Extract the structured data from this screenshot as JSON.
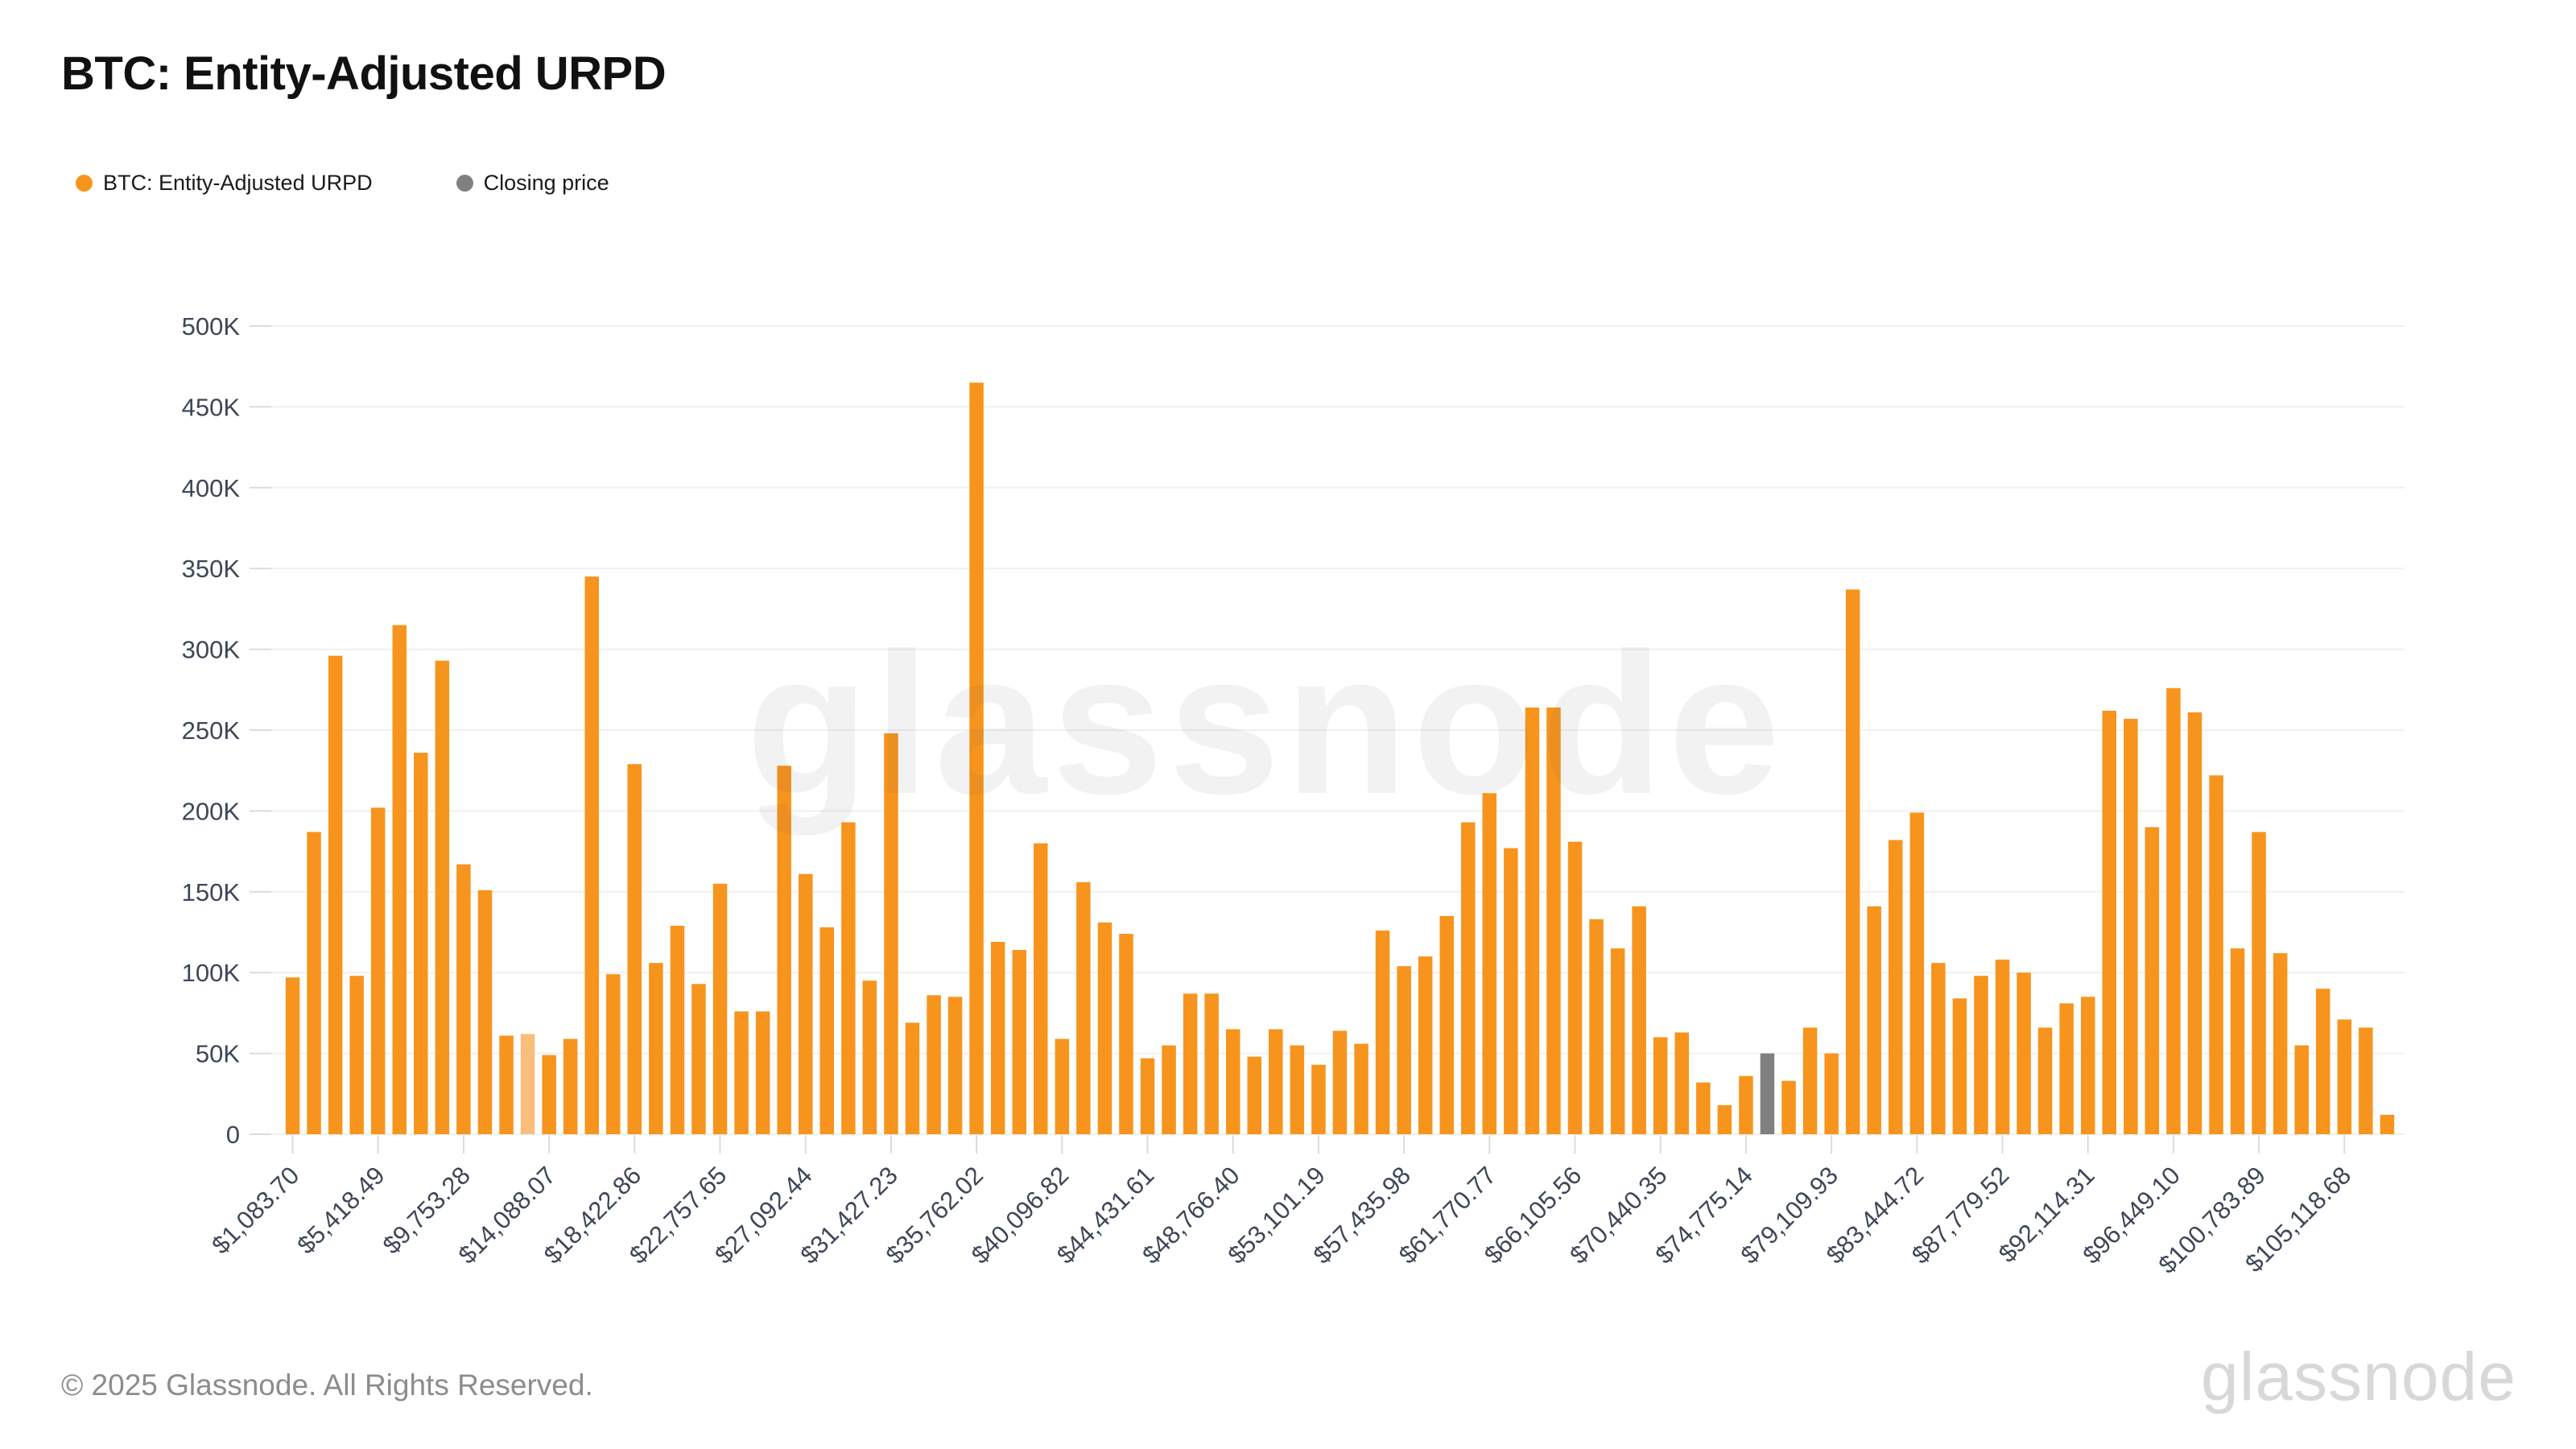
{
  "title": "BTC: Entity-Adjusted URPD",
  "legend": {
    "items": [
      {
        "label": "BTC: Entity-Adjusted URPD",
        "color": "#F7941D"
      },
      {
        "label": "Closing price",
        "color": "#808080"
      }
    ]
  },
  "watermark_text": "glassnode",
  "footer": {
    "copyright": "© 2025 Glassnode. All Rights Reserved.",
    "brand": "glassnode"
  },
  "chart_data": {
    "type": "bar",
    "title": "BTC: Entity-Adjusted URPD",
    "xlabel": "",
    "ylabel": "",
    "unit": "BTC",
    "ylim_k": [
      0,
      500
    ],
    "grid": "horizontal",
    "legend_position": "top-left",
    "y_tick_labels": [
      "0",
      "50K",
      "100K",
      "150K",
      "200K",
      "250K",
      "300K",
      "350K",
      "400K",
      "450K",
      "500K"
    ],
    "x_tick_labels": [
      "$1,083.70",
      "$5,418.49",
      "$9,753.28",
      "$14,088.07",
      "$18,422.86",
      "$22,757.65",
      "$27,092.44",
      "$31,427.23",
      "$35,762.02",
      "$40,096.82",
      "$44,431.61",
      "$48,766.40",
      "$53,101.19",
      "$57,435.98",
      "$61,770.77",
      "$66,105.56",
      "$70,440.35",
      "$74,775.14",
      "$79,109.93",
      "$83,444.72",
      "$87,779.52",
      "$92,114.31",
      "$96,449.10",
      "$100,783.89",
      "$105,118.68"
    ],
    "x_tick_every_n_bars": 4,
    "price_bin_start": 1083.7,
    "price_bin_step": 1083.7,
    "values_k": [
      97,
      187,
      296,
      98,
      202,
      315,
      236,
      293,
      167,
      151,
      61,
      62,
      49,
      59,
      345,
      99,
      229,
      106,
      129,
      93,
      155,
      76,
      76,
      228,
      161,
      128,
      193,
      95,
      248,
      69,
      86,
      85,
      465,
      119,
      114,
      180,
      59,
      156,
      131,
      124,
      47,
      55,
      87,
      87,
      65,
      48,
      65,
      55,
      43,
      64,
      56,
      126,
      104,
      110,
      135,
      193,
      211,
      177,
      264,
      264,
      181,
      133,
      115,
      141,
      60,
      63,
      32,
      18,
      36,
      50,
      33,
      66,
      50,
      337,
      141,
      182,
      199,
      106,
      84,
      98,
      108,
      100,
      66,
      81,
      85,
      262,
      257,
      190,
      276,
      261,
      222,
      115,
      187,
      112,
      55,
      90,
      71,
      66,
      12
    ],
    "bar_color": "#F7941D",
    "faded_bar_index": 11,
    "faded_bar_color": "#F9BE7B",
    "closing_price_bar_index": 69,
    "closing_price_bar_color": "#808080",
    "axis_text_color": "#3E4757",
    "gridline_color": "#F0F0F0",
    "tick_color": "#DCDCDC"
  }
}
